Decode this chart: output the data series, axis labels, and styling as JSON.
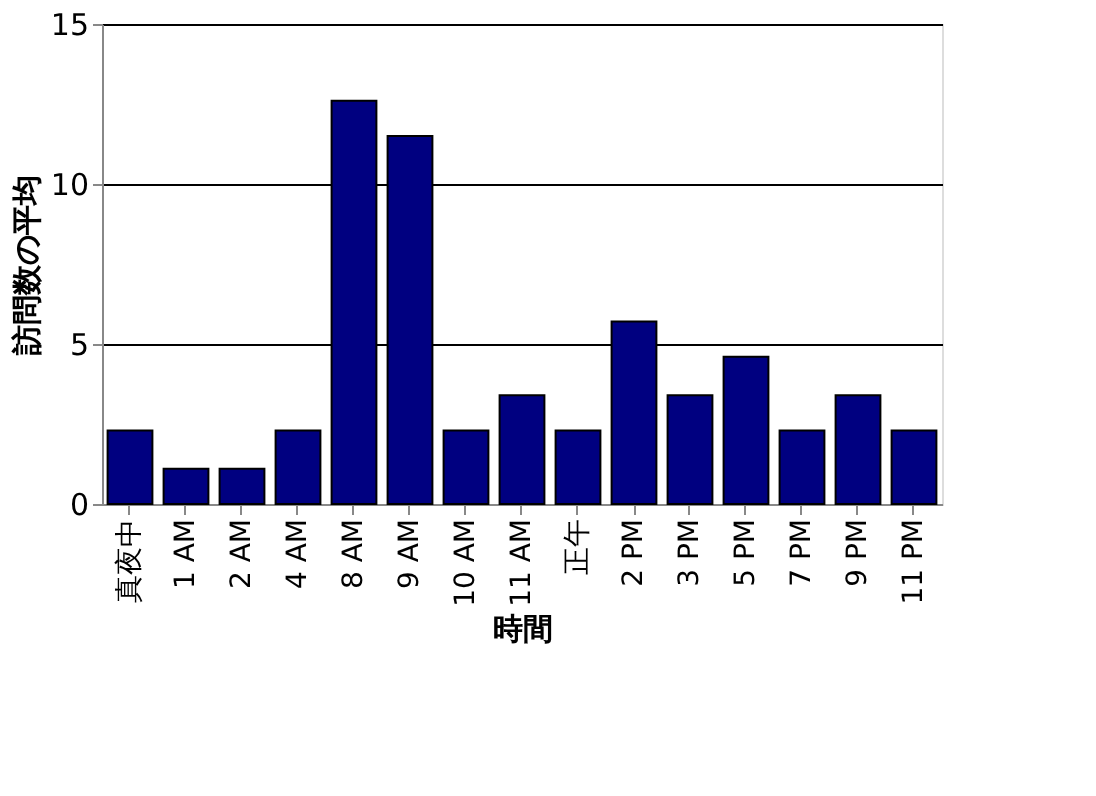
{
  "chart_data": {
    "type": "bar",
    "xlabel": "時間",
    "ylabel": "訪問数の平均",
    "categories": [
      "真夜中",
      "1 AM",
      "2 AM",
      "4 AM",
      "8 AM",
      "9 AM",
      "10 AM",
      "11 AM",
      "正午",
      "2 PM",
      "3 PM",
      "5 PM",
      "7 PM",
      "9 PM",
      "11 PM"
    ],
    "values": [
      2.3,
      1.1,
      1.1,
      2.3,
      12.6,
      11.5,
      2.3,
      3.4,
      2.3,
      5.7,
      3.4,
      4.6,
      2.3,
      3.4,
      2.3
    ],
    "color": "#000080",
    "ylim": [
      0,
      15
    ],
    "yticks": [
      0,
      5,
      10,
      15
    ],
    "grid": "y"
  }
}
